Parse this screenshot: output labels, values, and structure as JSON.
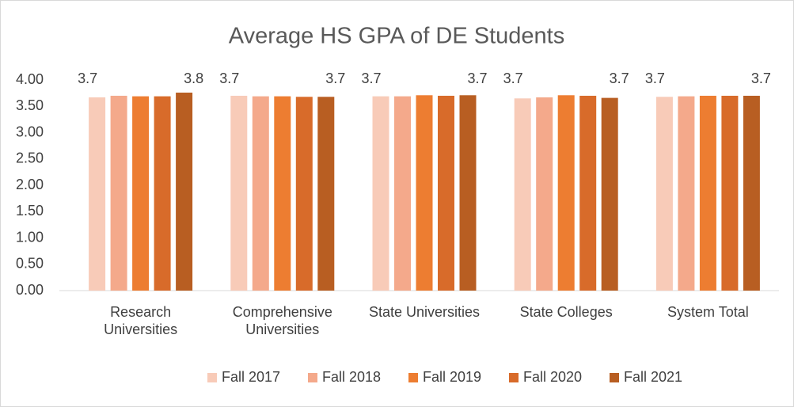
{
  "chart_data": {
    "type": "bar",
    "title": "Average HS GPA of DE Students",
    "categories": [
      "Research Universities",
      "Comprehensive Universities",
      "State Universities",
      "State Colleges",
      "System Total"
    ],
    "series": [
      {
        "name": "Fall 2017",
        "color": "#f8cbb8",
        "values": [
          3.67,
          3.7,
          3.69,
          3.65,
          3.68
        ],
        "value_labels": [
          "3.7",
          "3.7",
          "3.7",
          "3.7",
          "3.7"
        ]
      },
      {
        "name": "Fall 2018",
        "color": "#f4a98b",
        "values": [
          3.7,
          3.69,
          3.69,
          3.67,
          3.69
        ]
      },
      {
        "name": "Fall 2019",
        "color": "#ed7d31",
        "values": [
          3.69,
          3.69,
          3.71,
          3.71,
          3.7
        ]
      },
      {
        "name": "Fall 2020",
        "color": "#d86b2a",
        "values": [
          3.69,
          3.68,
          3.7,
          3.7,
          3.7
        ]
      },
      {
        "name": "Fall 2021",
        "color": "#b85e22",
        "values": [
          3.76,
          3.68,
          3.71,
          3.66,
          3.7
        ],
        "value_labels": [
          "3.8",
          "3.7",
          "3.7",
          "3.7",
          "3.7"
        ]
      }
    ],
    "ylim": [
      0,
      4
    ],
    "yticks": [
      {
        "value": 0,
        "label": "0.00"
      },
      {
        "value": 0.5,
        "label": "0.50"
      },
      {
        "value": 1,
        "label": "1.00"
      },
      {
        "value": 1.5,
        "label": "1.50"
      },
      {
        "value": 2,
        "label": "2.00"
      },
      {
        "value": 2.5,
        "label": "2.50"
      },
      {
        "value": 3,
        "label": "3.00"
      },
      {
        "value": 3.5,
        "label": "3.50"
      },
      {
        "value": 4,
        "label": "4.00"
      }
    ],
    "grid": false,
    "legend": "bottom"
  }
}
